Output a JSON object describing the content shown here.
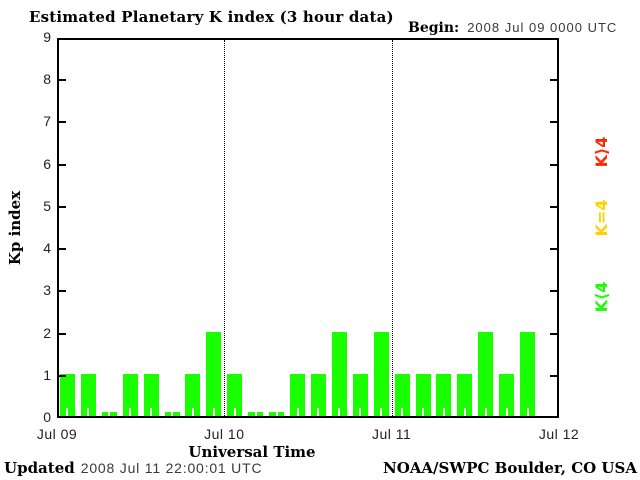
{
  "title": "Estimated Planetary K index (3 hour data)",
  "begin": {
    "label": "Begin:",
    "value": "2008 Jul 09 0000 UTC"
  },
  "footer": {
    "updated_label": "Updated",
    "updated_value": "2008 Jul 11 22:00:01 UTC",
    "credit": "NOAA/SWPC Boulder, CO USA"
  },
  "chart_data": {
    "type": "bar",
    "title": "Estimated Planetary K index (3 hour data)",
    "xlabel": "Universal Time",
    "ylabel": "Kp index",
    "ylim": [
      0,
      9
    ],
    "yticks": [
      0,
      1,
      2,
      3,
      4,
      5,
      6,
      7,
      8,
      9
    ],
    "xticks": [
      "Jul 09",
      "Jul 10",
      "Jul 11",
      "Jul 12"
    ],
    "interval_hours": 3,
    "periods_per_day": 8,
    "grid": "dotted vertical lines at day boundaries Jul 10 and Jul 11",
    "series": [
      {
        "name": "Kp",
        "x_start": "2008 Jul 09 0000 UTC",
        "values": [
          1,
          1,
          0,
          1,
          1,
          0,
          1,
          2,
          1,
          0,
          0,
          1,
          1,
          2,
          1,
          2,
          1,
          1,
          1,
          1,
          2,
          1,
          2
        ]
      }
    ],
    "colors": {
      "below4": "#1aff00",
      "equal4": "#ffd300",
      "above4": "#ff2600",
      "axis": "#000000",
      "background": "#ffffff"
    },
    "legend": [
      {
        "label": "K⟩4",
        "color": "#ff2600"
      },
      {
        "label": "K=4",
        "color": "#ffd300"
      },
      {
        "label": "K⟨4",
        "color": "#1aff00"
      }
    ],
    "legend_position": "right, rotated 90deg"
  }
}
